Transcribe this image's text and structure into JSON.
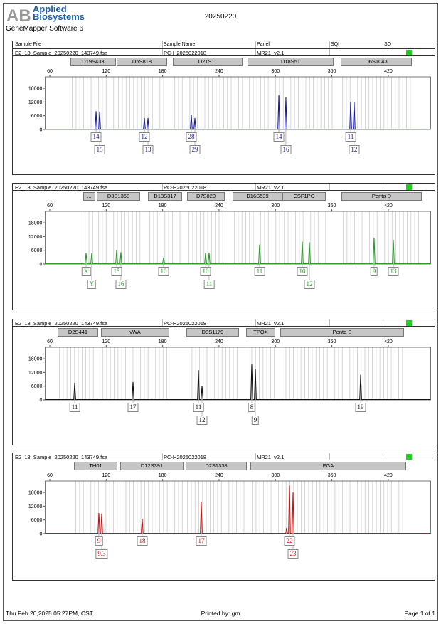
{
  "header": {
    "brand_line1": "Applied",
    "brand_line2": "Biosystems",
    "title": "20250220",
    "software": "GeneMapper Software 6"
  },
  "columns": [
    "Sample File",
    "Sample Name",
    "Panel",
    "SQI",
    "SQ"
  ],
  "y_ticks": [
    0,
    6000,
    12000,
    18000
  ],
  "x_ticks": [
    60,
    120,
    180,
    240,
    300,
    360,
    420
  ],
  "x_range_bp": [
    55,
    465
  ],
  "y_max": 23000,
  "sq_color": "#22cc22",
  "panels": [
    {
      "sample_file": "E2_18_Sample_20250220_143749.fsa",
      "sample_name": "PC-H2025022018",
      "panel": "MR21_v2.1",
      "sqi": "",
      "color": "#1a1a9e",
      "markers": [
        {
          "name": "D19S433",
          "range": [
            81.9,
            130.3
          ]
        },
        {
          "name": "D5S818",
          "range": [
            131.1,
            184.8
          ]
        },
        {
          "name": "D21S11",
          "range": [
            190.9,
            265
          ]
        },
        {
          "name": "D18S51",
          "range": [
            270.3,
            361.8
          ]
        },
        {
          "name": "D6S1043",
          "range": [
            369.4,
            445
          ]
        }
      ],
      "peaks": [
        {
          "bp": 109.2,
          "h": 8000,
          "allele": "14",
          "row": 0
        },
        {
          "bp": 113,
          "h": 7800,
          "allele": "15",
          "row": 1
        },
        {
          "bp": 160.6,
          "h": 5000,
          "allele": "12",
          "row": 0
        },
        {
          "bp": 164.4,
          "h": 5000,
          "allele": "13",
          "row": 1
        },
        {
          "bp": 210.5,
          "h": 6500,
          "allele": "28",
          "row": 0
        },
        {
          "bp": 214.3,
          "h": 5000,
          "allele": "29",
          "row": 1
        },
        {
          "bp": 303.6,
          "h": 15000,
          "allele": "14",
          "row": 0
        },
        {
          "bp": 311.1,
          "h": 14000,
          "allele": "16",
          "row": 1
        },
        {
          "bp": 380,
          "h": 12000,
          "allele": "11",
          "row": 0
        },
        {
          "bp": 383.7,
          "h": 12000,
          "allele": "12",
          "row": 1
        }
      ]
    },
    {
      "sample_file": "E2_18_Sample_20250220_143749.fsa",
      "sample_name": "PC-H2025022018",
      "panel": "MR21_v2.1",
      "sqi": "",
      "color": "#2a9a2a",
      "markers": [
        {
          "name": "...",
          "range": [
            95.6,
            108.4
          ]
        },
        {
          "name": "D3S1358",
          "range": [
            109.9,
            156.1
          ]
        },
        {
          "name": "D13S317",
          "range": [
            164.4,
            200.7
          ]
        },
        {
          "name": "D7S820",
          "range": [
            206,
            246.1
          ]
        },
        {
          "name": "D16S539",
          "range": [
            254.4,
            307.4
          ]
        },
        {
          "name": "CSF1PO",
          "range": [
            307.4,
            353.5
          ]
        },
        {
          "name": "Penta D",
          "range": [
            370.1,
            455.6
          ]
        }
      ],
      "peaks": [
        {
          "bp": 98.6,
          "h": 4800,
          "allele": "X",
          "row": 0
        },
        {
          "bp": 104.6,
          "h": 4800,
          "allele": "Y",
          "row": 1
        },
        {
          "bp": 131.1,
          "h": 6000,
          "allele": "15",
          "row": 0
        },
        {
          "bp": 135.6,
          "h": 5200,
          "allele": "16",
          "row": 1
        },
        {
          "bp": 181,
          "h": 2800,
          "allele": "10",
          "row": 0
        },
        {
          "bp": 225.7,
          "h": 5000,
          "allele": "10",
          "row": 0
        },
        {
          "bp": 229.4,
          "h": 5000,
          "allele": "11",
          "row": 1
        },
        {
          "bp": 283.1,
          "h": 8500,
          "allele": "11",
          "row": 0
        },
        {
          "bp": 328.5,
          "h": 9800,
          "allele": "10",
          "row": 0
        },
        {
          "bp": 336.1,
          "h": 9500,
          "allele": "12",
          "row": 1
        },
        {
          "bp": 404.9,
          "h": 11500,
          "allele": "9",
          "row": 0
        },
        {
          "bp": 425.4,
          "h": 10500,
          "allele": "13",
          "row": 0
        }
      ]
    },
    {
      "sample_file": "E2_18_Sample_20250220_143749.fsa",
      "sample_name": "PC-H2025022018",
      "panel": "MR21_v2.1",
      "sqi": "",
      "color": "#111111",
      "markers": [
        {
          "name": "D2S441",
          "range": [
            68.3,
            111.4
          ]
        },
        {
          "name": "vWA",
          "range": [
            114.5,
            187.1
          ]
        },
        {
          "name": "D8S1179",
          "range": [
            205.2,
            261.2
          ]
        },
        {
          "name": "TPOX",
          "range": [
            268.8,
            299.8
          ]
        },
        {
          "name": "Penta E",
          "range": [
            305.1,
            436.7
          ]
        }
      ],
      "peaks": [
        {
          "bp": 86.5,
          "h": 7500,
          "allele": "11",
          "row": 0
        },
        {
          "bp": 148.5,
          "h": 7800,
          "allele": "17",
          "row": 0
        },
        {
          "bp": 218.1,
          "h": 13000,
          "allele": "11",
          "row": 0
        },
        {
          "bp": 221.9,
          "h": 6000,
          "allele": "12",
          "row": 1
        },
        {
          "bp": 274.8,
          "h": 15500,
          "allele": "8",
          "row": 0
        },
        {
          "bp": 278.6,
          "h": 13500,
          "allele": "9",
          "row": 1
        },
        {
          "bp": 390.6,
          "h": 11000,
          "allele": "19",
          "row": 0
        }
      ]
    },
    {
      "sample_file": "E2_18_Sample_20250220_143749.fsa",
      "sample_name": "PC-H2025022018",
      "panel": "MR21_v2.1",
      "sqi": "",
      "color": "#cc1111",
      "markers": [
        {
          "name": "TH01",
          "range": [
            85.7,
            131.9
          ]
        },
        {
          "name": "D12S391",
          "range": [
            134.9,
            202.2
          ]
        },
        {
          "name": "D2S1338",
          "range": [
            204.5,
            269.5
          ]
        },
        {
          "name": "FGA",
          "range": [
            273.3,
            439
          ]
        }
      ],
      "peaks": [
        {
          "bp": 112.2,
          "h": 9000,
          "allele": "9",
          "row": 0
        },
        {
          "bp": 115.2,
          "h": 8800,
          "allele": "9.3",
          "row": 1
        },
        {
          "bp": 158.3,
          "h": 6500,
          "allele": "18",
          "row": 0
        },
        {
          "bp": 221.1,
          "h": 14000,
          "allele": "17",
          "row": 0
        },
        {
          "bp": 311.9,
          "h": 2500,
          "allele": "",
          "row": 0
        },
        {
          "bp": 314.9,
          "h": 21000,
          "allele": "22",
          "row": 0
        },
        {
          "bp": 318.7,
          "h": 18000,
          "allele": "23",
          "row": 1
        }
      ]
    }
  ],
  "footer": {
    "datetime": "Thu Feb 20,2025 05:27PM, CST",
    "printed_by": "Printed by: gm",
    "page": "Page 1 of 1"
  }
}
